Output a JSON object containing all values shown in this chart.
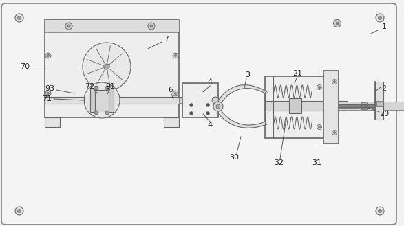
{
  "bg_color": "#f2f2f2",
  "border_color": "#777777",
  "line_color": "#666666",
  "fig_width": 5.87,
  "fig_height": 3.29,
  "dpi": 100
}
